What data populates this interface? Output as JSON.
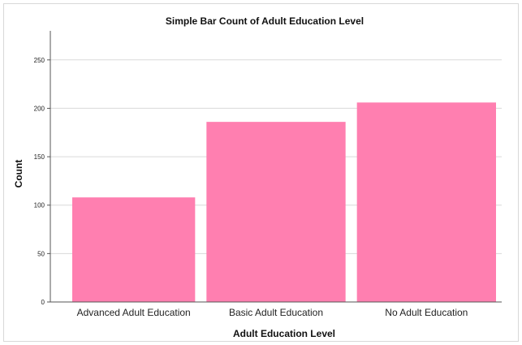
{
  "chart_data": {
    "type": "bar",
    "title": "Simple Bar Count of Adult Education Level",
    "xlabel": "Adult Education Level",
    "ylabel": "Count",
    "categories": [
      "Advanced Adult Education",
      "Basic Adult Education",
      "No Adult Education"
    ],
    "values": [
      108,
      186,
      206
    ],
    "ylim": [
      0,
      280
    ],
    "yticks": [
      0,
      50,
      100,
      150,
      200,
      250
    ],
    "grid": true,
    "legend": "none",
    "bar_color": "#ff7fb0",
    "grid_color": "#d9d9d9"
  }
}
